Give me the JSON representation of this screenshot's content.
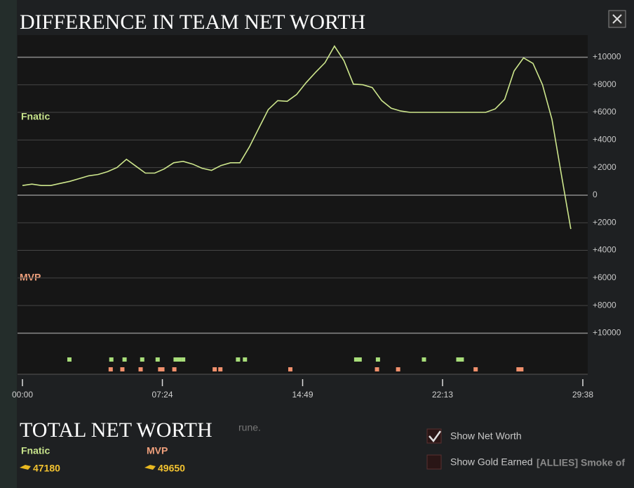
{
  "chart_data": {
    "type": "line",
    "title": "DIFFERENCE IN TEAM NET WORTH",
    "top_side": "Fnatic",
    "bottom_side": "MVP",
    "color": "#cde68c",
    "x": [
      0,
      30,
      60,
      90,
      120,
      150,
      180,
      210,
      240,
      270,
      300,
      330,
      360,
      390,
      420,
      450,
      480,
      510,
      540,
      570,
      600,
      630,
      660,
      690,
      720,
      750,
      780,
      810,
      840,
      870,
      900,
      930,
      960,
      990,
      1020,
      1050,
      1080,
      1110,
      1140,
      1170,
      1200,
      1230,
      1260,
      1290,
      1320,
      1350,
      1380,
      1410,
      1440,
      1470,
      1500,
      1530,
      1560,
      1590,
      1620,
      1650,
      1680,
      1710,
      1740
    ],
    "values": [
      700,
      800,
      700,
      700,
      850,
      1000,
      1200,
      1400,
      1500,
      1700,
      2000,
      2600,
      2100,
      1600,
      1600,
      1900,
      2350,
      2450,
      2250,
      1950,
      1800,
      2150,
      2350,
      2350,
      3500,
      4850,
      6200,
      6850,
      6800,
      7300,
      8150,
      8900,
      9600,
      10800,
      9750,
      8050,
      8000,
      7800,
      6850,
      6300,
      6100,
      6000,
      6000,
      6000,
      6000,
      6000,
      6000,
      6000,
      6000,
      6000,
      6250,
      6950,
      9000,
      9950,
      9550,
      8000,
      5500,
      1500,
      -2450
    ],
    "xlim": [
      0,
      1778
    ],
    "xticks": [
      {
        "value": 0,
        "label": "00:00"
      },
      {
        "value": 444,
        "label": "07:24"
      },
      {
        "value": 889,
        "label": "14:49"
      },
      {
        "value": 1333,
        "label": "22:13"
      },
      {
        "value": 1778,
        "label": "29:38"
      }
    ],
    "ylim": [
      11600,
      -11300
    ],
    "yticks": [
      {
        "value": 10000,
        "label": "+10000"
      },
      {
        "value": 8000,
        "label": "+8000"
      },
      {
        "value": 6000,
        "label": "+6000"
      },
      {
        "value": 4000,
        "label": "+4000"
      },
      {
        "value": 2000,
        "label": "+2000"
      },
      0,
      {
        "value": -2000,
        "label": "+2000"
      },
      {
        "value": -4000,
        "label": "+4000"
      },
      {
        "value": -6000,
        "label": "+6000"
      },
      {
        "value": -8000,
        "label": "+8000"
      },
      {
        "value": -10000,
        "label": "+10000"
      }
    ],
    "grid": true,
    "event_markers": [
      {
        "color": "#a8de7a",
        "x": [
          149,
          282,
          324,
          380,
          429,
          486,
          497,
          510,
          684,
          706,
          1059,
          1070,
          1128,
          1274,
          1383,
          1394
        ]
      },
      {
        "color": "#f0906c",
        "x": [
          280,
          317,
          375,
          437,
          444,
          482,
          610,
          628,
          850,
          1125,
          1192,
          1438,
          1574,
          1583
        ]
      }
    ]
  },
  "summary": {
    "title": "TOTAL NET WORTH",
    "teams": [
      {
        "name": "Fnatic",
        "net_worth": 47180
      },
      {
        "name": "MVP",
        "net_worth": 49650
      }
    ]
  },
  "options": [
    {
      "label": "Show Net Worth",
      "checked": true
    },
    {
      "label": "Show Gold Earned",
      "checked": false
    }
  ],
  "background_chat": [
    "rune.",
    "[ALLIES] Smoke of"
  ]
}
